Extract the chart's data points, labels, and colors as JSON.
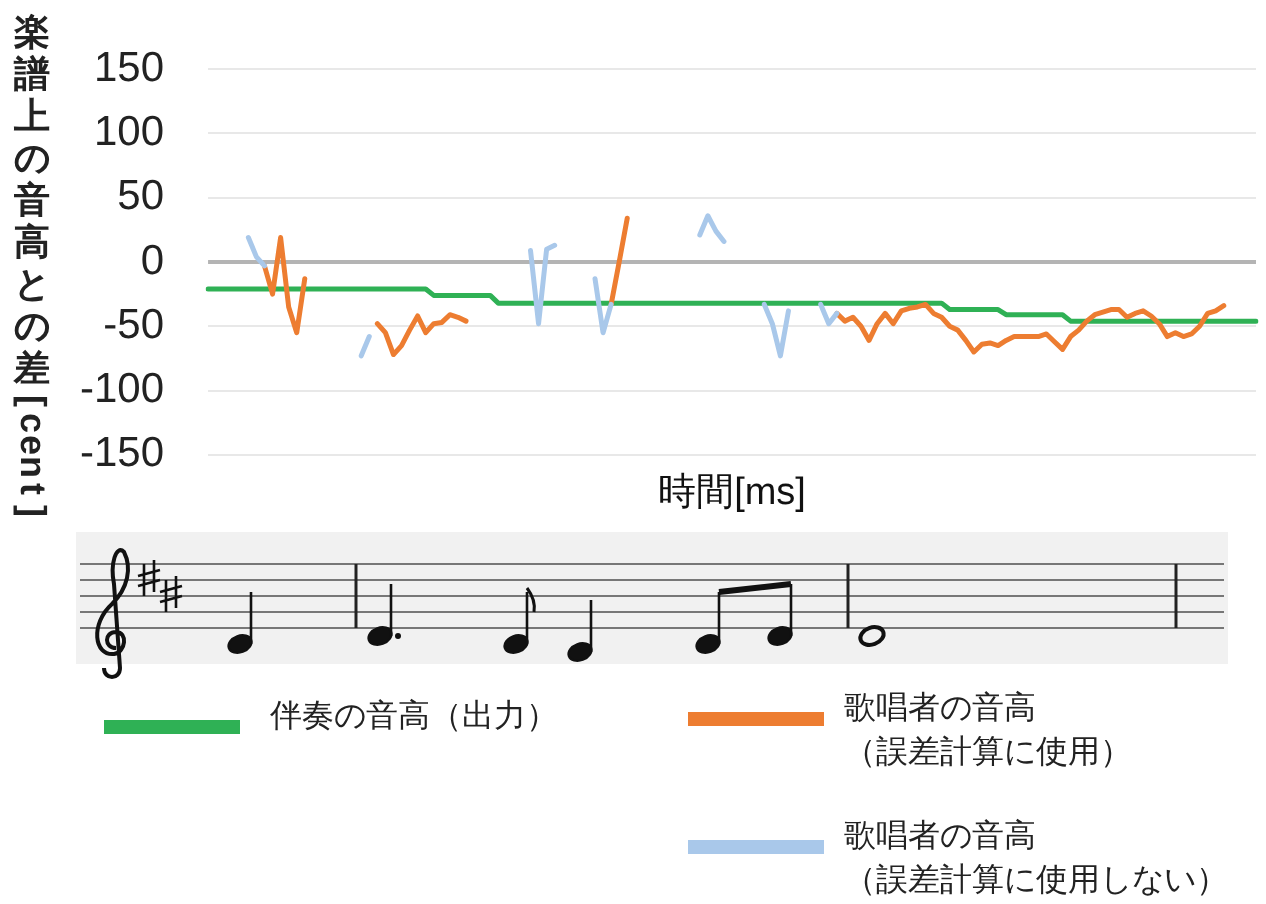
{
  "chart_data": {
    "type": "line",
    "xlabel": "時間[ms]",
    "ylabel": "楽譜上の音高との差[cent]",
    "categories": [
      null,
      null,
      null,
      null,
      null,
      null,
      null,
      null,
      null,
      null,
      null,
      null,
      null,
      null,
      null,
      null,
      null,
      null,
      null,
      null,
      null,
      null,
      null,
      null,
      null,
      null,
      null,
      null,
      null,
      null,
      null,
      null,
      null,
      null,
      null,
      null,
      null,
      null,
      null,
      null,
      null,
      null,
      null,
      null,
      null,
      null,
      null,
      null,
      null,
      null,
      null,
      null,
      null,
      null,
      null,
      null,
      null,
      null,
      null,
      null,
      null,
      null,
      null,
      null,
      null,
      null,
      null,
      null,
      null,
      null,
      null,
      null,
      null,
      null,
      null,
      null,
      null,
      null,
      null,
      null,
      null,
      null,
      null,
      null,
      null,
      null,
      null,
      null,
      null,
      null,
      null,
      null,
      null,
      null,
      null,
      null,
      null,
      null,
      null,
      null,
      null,
      null,
      null,
      null,
      null,
      null,
      null,
      null,
      null,
      null,
      null,
      null,
      null,
      null,
      null,
      null,
      null,
      null,
      null,
      null,
      null,
      null,
      null,
      null,
      null,
      null,
      null,
      null,
      null,
      null,
      null
    ],
    "series": [
      {
        "name": "伴奏の音高（出力）",
        "color": "#2fb155",
        "values": [
          -21,
          -21,
          -21,
          -21,
          -21,
          -21,
          -21,
          -21,
          -21,
          -21,
          -21,
          -21,
          -21,
          -21,
          -21,
          -21,
          -21,
          -21,
          -21,
          -21,
          -21,
          -21,
          -21,
          -21,
          -21,
          -21,
          -21,
          -21,
          -26,
          -26,
          -26,
          -26,
          -26,
          -26,
          -26,
          -26,
          -32,
          -32,
          -32,
          -32,
          -32,
          -32,
          -32,
          -32,
          -32,
          -32,
          -32,
          -32,
          -32,
          -32,
          -32,
          -32,
          -32,
          -32,
          -32,
          -32,
          -32,
          -32,
          -32,
          -32,
          -32,
          -32,
          -32,
          -32,
          -32,
          -32,
          -32,
          -32,
          -32,
          -32,
          -32,
          -32,
          -32,
          -32,
          -32,
          -32,
          -32,
          -32,
          -32,
          -32,
          -32,
          -32,
          -32,
          -32,
          -32,
          -32,
          -32,
          -32,
          -32,
          -32,
          -32,
          -32,
          -37,
          -37,
          -37,
          -37,
          -37,
          -37,
          -37,
          -41,
          -41,
          -41,
          -41,
          -41,
          -41,
          -41,
          -41,
          -46,
          -46,
          -46,
          -46,
          -46,
          -46,
          -46,
          -46,
          -46,
          -46,
          -46,
          -46,
          -46,
          -46,
          -46,
          -46,
          -46,
          -46,
          -46,
          -46,
          -46,
          -46,
          -46,
          -46
        ]
      },
      {
        "name": "歌唱者の音高（誤差計算に使用）",
        "color": "#ed7d31",
        "values": [
          null,
          null,
          null,
          null,
          null,
          null,
          null,
          -3,
          -25,
          19,
          -35,
          -55,
          -13,
          null,
          null,
          null,
          null,
          null,
          null,
          null,
          null,
          -48,
          -55,
          -72,
          -65,
          -53,
          -42,
          -55,
          -48,
          -47,
          -41,
          -43,
          -46,
          null,
          null,
          null,
          null,
          null,
          null,
          null,
          null,
          null,
          null,
          null,
          null,
          null,
          null,
          null,
          null,
          null,
          -33,
          0,
          34,
          null,
          null,
          null,
          null,
          null,
          null,
          null,
          null,
          null,
          null,
          null,
          null,
          null,
          null,
          null,
          null,
          null,
          null,
          null,
          null,
          null,
          null,
          null,
          null,
          null,
          -40,
          -46,
          -43,
          -50,
          -61,
          -48,
          -40,
          -48,
          -38,
          -36,
          -35,
          -33,
          -40,
          -43,
          -50,
          -53,
          -61,
          -70,
          -64,
          -63,
          -65,
          -61,
          -58,
          -58,
          -58,
          -58,
          -56,
          -62,
          -68,
          -58,
          -53,
          -46,
          -41,
          -39,
          -37,
          -37,
          -43,
          -40,
          -38,
          -42,
          -48,
          -58,
          -55,
          -58,
          -56,
          -50,
          -40,
          -38,
          -34,
          null,
          null,
          null,
          null
        ]
      },
      {
        "name": "歌唱者の音高（誤差計算に使用しない）",
        "color": "#a9c8ea",
        "values": [
          null,
          null,
          null,
          null,
          null,
          19,
          4,
          -3,
          null,
          null,
          null,
          null,
          null,
          null,
          null,
          null,
          null,
          null,
          null,
          -73,
          -58,
          null,
          null,
          null,
          null,
          null,
          null,
          null,
          null,
          null,
          null,
          null,
          null,
          null,
          null,
          null,
          null,
          null,
          null,
          null,
          9,
          -48,
          10,
          13,
          null,
          null,
          null,
          null,
          -13,
          -55,
          -33,
          null,
          null,
          null,
          null,
          null,
          null,
          null,
          null,
          null,
          null,
          21,
          36,
          24,
          16,
          null,
          null,
          null,
          null,
          -33,
          -48,
          -73,
          -38,
          null,
          null,
          null,
          -33,
          -48,
          -40,
          null,
          null,
          null,
          null,
          null,
          null,
          null,
          null,
          null,
          null,
          null,
          null,
          null,
          null,
          null,
          null,
          null,
          null,
          null,
          null,
          null,
          null,
          null,
          null,
          null,
          null,
          null,
          null,
          null,
          null,
          null,
          null,
          null,
          null,
          null,
          null,
          null,
          null,
          null,
          null,
          null,
          null,
          null,
          null,
          null,
          null,
          null,
          null,
          null,
          null,
          null,
          null
        ]
      }
    ],
    "ylim": [
      -150,
      150
    ],
    "yticks": [
      -150,
      -100,
      -50,
      0,
      50,
      100,
      150
    ],
    "grid": "y",
    "tick_labels": "y",
    "ref_lines": [
      {
        "axis": "y",
        "value": 0,
        "color": "#b4b4b4"
      }
    ],
    "legend": "bottom",
    "marker": "none",
    "line_style": "solid"
  }
}
